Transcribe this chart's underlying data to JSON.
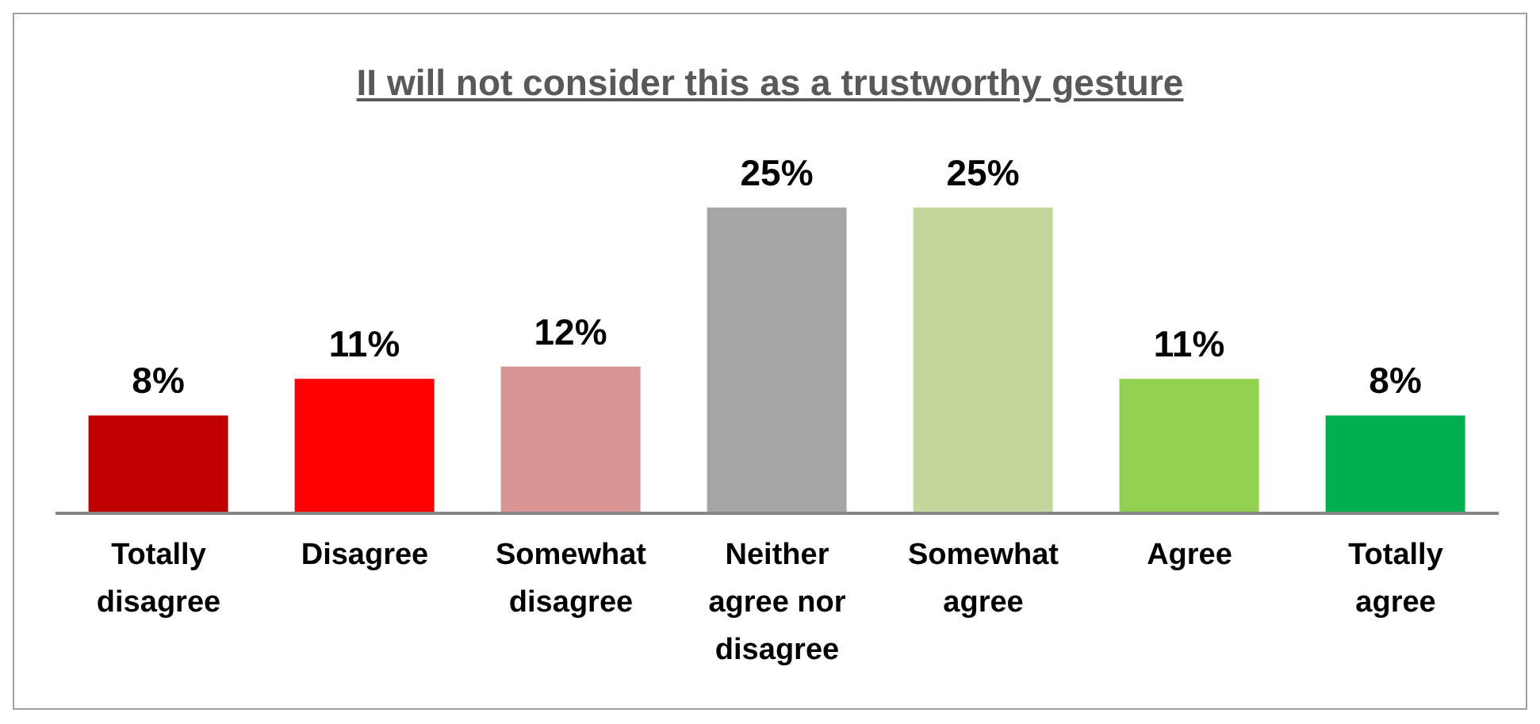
{
  "chart_data": {
    "type": "bar",
    "title": "II will not consider this as a trustworthy gesture",
    "categories": [
      "Totally disagree",
      "Disagree",
      "Somewhat disagree",
      "Neither agree nor disagree",
      "Somewhat agree",
      "Agree",
      "Totally agree"
    ],
    "values": [
      8,
      11,
      12,
      25,
      25,
      11,
      8
    ],
    "value_labels": [
      "8%",
      "11%",
      "12%",
      "25%",
      "25%",
      "11%",
      "8%"
    ],
    "colors": [
      "#c00000",
      "#ff0000",
      "#d99594",
      "#a6a6a6",
      "#c3d69b",
      "#92d050",
      "#00b050"
    ],
    "grid": false,
    "legend": false
  }
}
